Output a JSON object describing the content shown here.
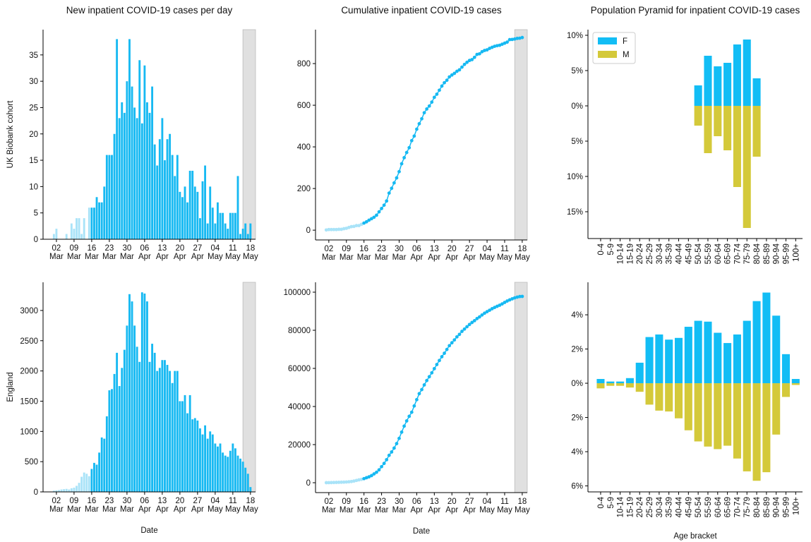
{
  "chart_data": [
    {
      "type": "bar",
      "title": "New inpatient COVID-19 cases per day",
      "ylabel": "UK Biobank cohort",
      "x": [
        "03-01",
        "03-02",
        "03-03",
        "03-04",
        "03-05",
        "03-06",
        "03-07",
        "03-08",
        "03-09",
        "03-10",
        "03-11",
        "03-12",
        "03-13",
        "03-14",
        "03-15",
        "03-16",
        "03-17",
        "03-18",
        "03-19",
        "03-20",
        "03-21",
        "03-22",
        "03-23",
        "03-24",
        "03-25",
        "03-26",
        "03-27",
        "03-28",
        "03-29",
        "03-30",
        "03-31",
        "04-01",
        "04-02",
        "04-03",
        "04-04",
        "04-05",
        "04-06",
        "04-07",
        "04-08",
        "04-09",
        "04-10",
        "04-11",
        "04-12",
        "04-13",
        "04-14",
        "04-15",
        "04-16",
        "04-17",
        "04-18",
        "04-19",
        "04-20",
        "04-21",
        "04-22",
        "04-23",
        "04-24",
        "04-25",
        "04-26",
        "04-27",
        "04-28",
        "04-29",
        "04-30",
        "05-01",
        "05-02",
        "05-03",
        "05-04",
        "05-05",
        "05-06",
        "05-07",
        "05-08",
        "05-09",
        "05-10",
        "05-11",
        "05-12",
        "05-13",
        "05-14",
        "05-15",
        "05-16",
        "05-17",
        "05-18"
      ],
      "values": [
        1,
        2,
        0,
        0,
        0,
        1,
        0,
        3,
        2,
        4,
        4,
        1,
        4,
        0,
        6,
        6,
        6,
        8,
        7,
        7,
        10,
        16,
        16,
        16,
        20,
        38,
        23,
        26,
        24,
        30,
        38,
        29,
        25,
        23,
        34,
        22,
        33,
        26,
        24,
        29,
        18,
        14,
        19,
        23,
        15,
        19,
        20,
        16,
        12,
        16,
        9,
        8,
        10,
        7,
        13,
        13,
        10,
        9,
        4,
        11,
        14,
        3,
        10,
        6,
        3,
        7,
        5,
        5,
        3,
        2,
        5,
        5,
        5,
        12,
        1,
        2,
        3,
        1,
        3
      ],
      "color": "#16b9f2",
      "faded_color": "#a9e3f8",
      "faded_before": "03-16",
      "shade": [
        "05-15",
        "05-20"
      ],
      "shade_color": "#e0e0e0",
      "ylim": [
        0,
        39.8
      ],
      "yticks": [
        0,
        5,
        10,
        15,
        20,
        25,
        30,
        35
      ],
      "xticks": [
        {
          "value": "03-02",
          "label": "02 Mar"
        },
        {
          "value": "03-09",
          "label": "09 Mar"
        },
        {
          "value": "03-16",
          "label": "16 Mar"
        },
        {
          "value": "03-23",
          "label": "23 Mar"
        },
        {
          "value": "03-30",
          "label": "30 Mar"
        },
        {
          "value": "04-06",
          "label": "06 Apr"
        },
        {
          "value": "04-13",
          "label": "13 Apr"
        },
        {
          "value": "04-20",
          "label": "20 Apr"
        },
        {
          "value": "04-27",
          "label": "27 Apr"
        },
        {
          "value": "05-04",
          "label": "04 May"
        },
        {
          "value": "05-11",
          "label": "11 May"
        },
        {
          "value": "05-18",
          "label": "18 May"
        }
      ]
    },
    {
      "type": "line",
      "title": "Cumulative inpatient COVID-19 cases",
      "x": [
        "03-01",
        "03-02",
        "03-03",
        "03-04",
        "03-05",
        "03-06",
        "03-07",
        "03-08",
        "03-09",
        "03-10",
        "03-11",
        "03-12",
        "03-13",
        "03-14",
        "03-15",
        "03-16",
        "03-17",
        "03-18",
        "03-19",
        "03-20",
        "03-21",
        "03-22",
        "03-23",
        "03-24",
        "03-25",
        "03-26",
        "03-27",
        "03-28",
        "03-29",
        "03-30",
        "03-31",
        "04-01",
        "04-02",
        "04-03",
        "04-04",
        "04-05",
        "04-06",
        "04-07",
        "04-08",
        "04-09",
        "04-10",
        "04-11",
        "04-12",
        "04-13",
        "04-14",
        "04-15",
        "04-16",
        "04-17",
        "04-18",
        "04-19",
        "04-20",
        "04-21",
        "04-22",
        "04-23",
        "04-24",
        "04-25",
        "04-26",
        "04-27",
        "04-28",
        "04-29",
        "04-30",
        "05-01",
        "05-02",
        "05-03",
        "05-04",
        "05-05",
        "05-06",
        "05-07",
        "05-08",
        "05-09",
        "05-10",
        "05-11",
        "05-12",
        "05-13",
        "05-14",
        "05-15",
        "05-16",
        "05-17",
        "05-18"
      ],
      "values": [
        1,
        3,
        3,
        3,
        3,
        4,
        4,
        7,
        9,
        13,
        17,
        18,
        22,
        22,
        28,
        34,
        40,
        48,
        55,
        62,
        72,
        88,
        104,
        120,
        140,
        178,
        201,
        227,
        251,
        281,
        319,
        348,
        373,
        396,
        430,
        452,
        485,
        511,
        535,
        564,
        582,
        596,
        615,
        638,
        653,
        672,
        692,
        708,
        720,
        736,
        745,
        753,
        763,
        770,
        783,
        796,
        806,
        815,
        819,
        830,
        844,
        847,
        857,
        863,
        866,
        873,
        878,
        883,
        886,
        888,
        893,
        898,
        903,
        915,
        916,
        918,
        921,
        922,
        925
      ],
      "color": "#16b9f2",
      "faded_color": "#a9e3f8",
      "faded_before": "03-16",
      "shade": [
        "05-15",
        "05-20"
      ],
      "shade_color": "#e0e0e0",
      "ylim": [
        -47,
        963
      ],
      "yticks": [
        0,
        200,
        400,
        600,
        800
      ],
      "xticks": [
        {
          "value": "03-02",
          "label": "02 Mar"
        },
        {
          "value": "03-09",
          "label": "09 Mar"
        },
        {
          "value": "03-16",
          "label": "16 Mar"
        },
        {
          "value": "03-23",
          "label": "23 Mar"
        },
        {
          "value": "03-30",
          "label": "30 Mar"
        },
        {
          "value": "04-06",
          "label": "06 Apr"
        },
        {
          "value": "04-13",
          "label": "13 Apr"
        },
        {
          "value": "04-20",
          "label": "20 Apr"
        },
        {
          "value": "04-27",
          "label": "27 Apr"
        },
        {
          "value": "05-04",
          "label": "04 May"
        },
        {
          "value": "05-11",
          "label": "11 May"
        },
        {
          "value": "05-18",
          "label": "18 May"
        }
      ]
    },
    {
      "type": "pyramid",
      "title": "Population Pyramid for inpatient COVID-19 cases",
      "categories": [
        "0-4",
        "5-9",
        "10-14",
        "15-19",
        "20-24",
        "25-29",
        "30-34",
        "35-39",
        "40-44",
        "45-49",
        "50-54",
        "55-59",
        "60-64",
        "65-69",
        "70-74",
        "75-79",
        "80-84",
        "85-89",
        "90-94",
        "95-99",
        "100+"
      ],
      "series": [
        {
          "name": "F",
          "color": "#12bdf5",
          "values": [
            0,
            0,
            0,
            0,
            0,
            0,
            0,
            0,
            0,
            0,
            2.9,
            7.1,
            5.6,
            6.1,
            8.7,
            9.4,
            3.9,
            0,
            0,
            0,
            0
          ]
        },
        {
          "name": "M",
          "color": "#d4c93a",
          "values": [
            0,
            0,
            0,
            0,
            0,
            0,
            0,
            0,
            0,
            0,
            -2.8,
            -6.7,
            -4.3,
            -6.3,
            -11.5,
            -17.3,
            -7.2,
            0,
            0,
            0,
            0
          ]
        }
      ],
      "legend": "upper left",
      "ylim": [
        -18.8,
        10.8
      ],
      "yticks": [
        {
          "value": -15,
          "label": "15%"
        },
        {
          "value": -10,
          "label": "10%"
        },
        {
          "value": -5,
          "label": "5%"
        },
        {
          "value": 0,
          "label": "0%"
        },
        {
          "value": 5,
          "label": "5%"
        },
        {
          "value": 10,
          "label": "10%"
        }
      ]
    },
    {
      "type": "bar",
      "ylabel": "England",
      "xlabel": "Date",
      "x": [
        "03-01",
        "03-02",
        "03-03",
        "03-04",
        "03-05",
        "03-06",
        "03-07",
        "03-08",
        "03-09",
        "03-10",
        "03-11",
        "03-12",
        "03-13",
        "03-14",
        "03-15",
        "03-16",
        "03-17",
        "03-18",
        "03-19",
        "03-20",
        "03-21",
        "03-22",
        "03-23",
        "03-24",
        "03-25",
        "03-26",
        "03-27",
        "03-28",
        "03-29",
        "03-30",
        "03-31",
        "04-01",
        "04-02",
        "04-03",
        "04-04",
        "04-05",
        "04-06",
        "04-07",
        "04-08",
        "04-09",
        "04-10",
        "04-11",
        "04-12",
        "04-13",
        "04-14",
        "04-15",
        "04-16",
        "04-17",
        "04-18",
        "04-19",
        "04-20",
        "04-21",
        "04-22",
        "04-23",
        "04-24",
        "04-25",
        "04-26",
        "04-27",
        "04-28",
        "04-29",
        "04-30",
        "05-01",
        "05-02",
        "05-03",
        "05-04",
        "05-05",
        "05-06",
        "05-07",
        "05-08",
        "05-09",
        "05-10",
        "05-11",
        "05-12",
        "05-13",
        "05-14",
        "05-15",
        "05-16",
        "05-17",
        "05-18"
      ],
      "values": [
        20,
        25,
        30,
        40,
        45,
        50,
        40,
        60,
        70,
        100,
        150,
        250,
        320,
        300,
        260,
        380,
        480,
        450,
        650,
        900,
        880,
        1250,
        1680,
        1700,
        1950,
        2300,
        1750,
        2050,
        2350,
        2750,
        3270,
        3150,
        2750,
        2400,
        2150,
        3300,
        3280,
        3150,
        2150,
        2450,
        2300,
        2000,
        2050,
        2180,
        2180,
        2100,
        2000,
        1800,
        2000,
        2000,
        1500,
        1500,
        1600,
        1300,
        1600,
        1200,
        1220,
        1180,
        1050,
        950,
        1100,
        880,
        1000,
        950,
        800,
        750,
        800,
        650,
        600,
        580,
        680,
        800,
        720,
        600,
        550,
        500,
        400,
        300,
        80
      ],
      "color": "#16b9f2",
      "faded_color": "#a9e3f8",
      "faded_before": "03-16",
      "shade": [
        "05-15",
        "05-20"
      ],
      "shade_color": "#e0e0e0",
      "ylim": [
        0,
        3466
      ],
      "yticks": [
        0,
        500,
        1000,
        1500,
        2000,
        2500,
        3000
      ],
      "xticks": [
        {
          "value": "03-02",
          "label": "02 Mar"
        },
        {
          "value": "03-09",
          "label": "09 Mar"
        },
        {
          "value": "03-16",
          "label": "16 Mar"
        },
        {
          "value": "03-23",
          "label": "23 Mar"
        },
        {
          "value": "03-30",
          "label": "30 Mar"
        },
        {
          "value": "04-06",
          "label": "06 Apr"
        },
        {
          "value": "04-13",
          "label": "13 Apr"
        },
        {
          "value": "04-20",
          "label": "20 Apr"
        },
        {
          "value": "04-27",
          "label": "27 Apr"
        },
        {
          "value": "05-04",
          "label": "04 May"
        },
        {
          "value": "05-11",
          "label": "11 May"
        },
        {
          "value": "05-18",
          "label": "18 May"
        }
      ]
    },
    {
      "type": "line",
      "xlabel": "Date",
      "x": [
        "03-01",
        "03-02",
        "03-03",
        "03-04",
        "03-05",
        "03-06",
        "03-07",
        "03-08",
        "03-09",
        "03-10",
        "03-11",
        "03-12",
        "03-13",
        "03-14",
        "03-15",
        "03-16",
        "03-17",
        "03-18",
        "03-19",
        "03-20",
        "03-21",
        "03-22",
        "03-23",
        "03-24",
        "03-25",
        "03-26",
        "03-27",
        "03-28",
        "03-29",
        "03-30",
        "03-31",
        "04-01",
        "04-02",
        "04-03",
        "04-04",
        "04-05",
        "04-06",
        "04-07",
        "04-08",
        "04-09",
        "04-10",
        "04-11",
        "04-12",
        "04-13",
        "04-14",
        "04-15",
        "04-16",
        "04-17",
        "04-18",
        "04-19",
        "04-20",
        "04-21",
        "04-22",
        "04-23",
        "04-24",
        "04-25",
        "04-26",
        "04-27",
        "04-28",
        "04-29",
        "04-30",
        "05-01",
        "05-02",
        "05-03",
        "05-04",
        "05-05",
        "05-06",
        "05-07",
        "05-08",
        "05-09",
        "05-10",
        "05-11",
        "05-12",
        "05-13",
        "05-14",
        "05-15",
        "05-16",
        "05-17",
        "05-18"
      ],
      "values": [
        20,
        45,
        75,
        115,
        160,
        210,
        250,
        310,
        380,
        480,
        630,
        880,
        1200,
        1500,
        1760,
        2140,
        2620,
        3070,
        3720,
        4620,
        5500,
        6750,
        8430,
        10130,
        12080,
        14380,
        16130,
        18180,
        20530,
        23280,
        26550,
        29700,
        32450,
        34850,
        37000,
        40300,
        43580,
        46730,
        48880,
        51330,
        53630,
        55630,
        57680,
        59860,
        62040,
        64140,
        66140,
        67940,
        69940,
        71940,
        73440,
        74940,
        76540,
        77840,
        79440,
        80640,
        81860,
        83040,
        84090,
        85040,
        86140,
        87020,
        88020,
        88970,
        89770,
        90520,
        91320,
        91970,
        92570,
        93150,
        93830,
        94630,
        95350,
        95950,
        96500,
        97000,
        97400,
        97700,
        97780
      ],
      "color": "#16b9f2",
      "faded_color": "#a9e3f8",
      "faded_before": "03-16",
      "shade": [
        "05-15",
        "05-20"
      ],
      "shade_color": "#e0e0e0",
      "ylim": [
        -5185,
        105185
      ],
      "yticks": [
        0,
        20000,
        40000,
        60000,
        80000,
        100000
      ],
      "xticks": [
        {
          "value": "03-02",
          "label": "02 Mar"
        },
        {
          "value": "03-09",
          "label": "09 Mar"
        },
        {
          "value": "03-16",
          "label": "16 Mar"
        },
        {
          "value": "03-23",
          "label": "23 Mar"
        },
        {
          "value": "03-30",
          "label": "30 Mar"
        },
        {
          "value": "04-06",
          "label": "06 Apr"
        },
        {
          "value": "04-13",
          "label": "13 Apr"
        },
        {
          "value": "04-20",
          "label": "20 Apr"
        },
        {
          "value": "04-27",
          "label": "27 Apr"
        },
        {
          "value": "05-04",
          "label": "04 May"
        },
        {
          "value": "05-11",
          "label": "11 May"
        },
        {
          "value": "05-18",
          "label": "18 May"
        }
      ]
    },
    {
      "type": "pyramid",
      "xlabel": "Age bracket",
      "categories": [
        "0-4",
        "5-9",
        "10-14",
        "15-19",
        "20-24",
        "25-29",
        "30-34",
        "35-39",
        "40-44",
        "45-49",
        "50-54",
        "55-59",
        "60-64",
        "65-69",
        "70-74",
        "75-79",
        "80-84",
        "85-89",
        "90-94",
        "95-99",
        "100+"
      ],
      "series": [
        {
          "color": "#12bdf5",
          "values": [
            0.25,
            0.1,
            0.1,
            0.3,
            1.2,
            2.7,
            2.85,
            2.55,
            2.65,
            3.3,
            3.65,
            3.6,
            2.95,
            2.35,
            2.85,
            3.65,
            4.8,
            5.3,
            3.95,
            1.7,
            0.25
          ]
        },
        {
          "color": "#d4c93a",
          "values": [
            -0.3,
            -0.15,
            -0.15,
            -0.25,
            -0.5,
            -1.25,
            -1.6,
            -1.65,
            -2.05,
            -2.75,
            -3.4,
            -3.7,
            -3.85,
            -3.65,
            -4.4,
            -5.15,
            -5.7,
            -5.2,
            -3.0,
            -0.8,
            -0.1
          ]
        }
      ],
      "ylim": [
        -6.35,
        5.9
      ],
      "yticks": [
        {
          "value": -6,
          "label": "6%"
        },
        {
          "value": -4,
          "label": "4%"
        },
        {
          "value": -2,
          "label": "2%"
        },
        {
          "value": 0,
          "label": "0%"
        },
        {
          "value": 2,
          "label": "2%"
        },
        {
          "value": 4,
          "label": "4%"
        }
      ]
    }
  ]
}
